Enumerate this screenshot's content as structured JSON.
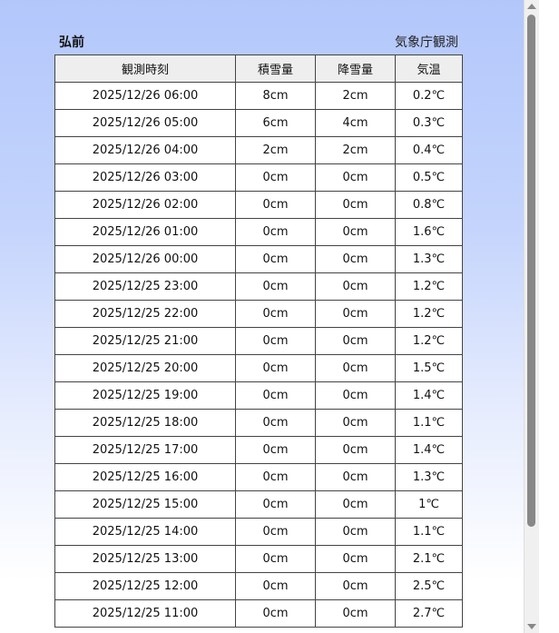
{
  "header": {
    "title": "弘前",
    "source": "気象庁観測"
  },
  "table": {
    "columns": [
      "観測時刻",
      "積雪量",
      "降雪量",
      "気温"
    ],
    "rows": [
      [
        "2025/12/26 06:00",
        "8cm",
        "2cm",
        "0.2℃"
      ],
      [
        "2025/12/26 05:00",
        "6cm",
        "4cm",
        "0.3℃"
      ],
      [
        "2025/12/26 04:00",
        "2cm",
        "2cm",
        "0.4℃"
      ],
      [
        "2025/12/26 03:00",
        "0cm",
        "0cm",
        "0.5℃"
      ],
      [
        "2025/12/26 02:00",
        "0cm",
        "0cm",
        "0.8℃"
      ],
      [
        "2025/12/26 01:00",
        "0cm",
        "0cm",
        "1.6℃"
      ],
      [
        "2025/12/26 00:00",
        "0cm",
        "0cm",
        "1.3℃"
      ],
      [
        "2025/12/25 23:00",
        "0cm",
        "0cm",
        "1.2℃"
      ],
      [
        "2025/12/25 22:00",
        "0cm",
        "0cm",
        "1.2℃"
      ],
      [
        "2025/12/25 21:00",
        "0cm",
        "0cm",
        "1.2℃"
      ],
      [
        "2025/12/25 20:00",
        "0cm",
        "0cm",
        "1.5℃"
      ],
      [
        "2025/12/25 19:00",
        "0cm",
        "0cm",
        "1.4℃"
      ],
      [
        "2025/12/25 18:00",
        "0cm",
        "0cm",
        "1.1℃"
      ],
      [
        "2025/12/25 17:00",
        "0cm",
        "0cm",
        "1.4℃"
      ],
      [
        "2025/12/25 16:00",
        "0cm",
        "0cm",
        "1.3℃"
      ],
      [
        "2025/12/25 15:00",
        "0cm",
        "0cm",
        "1℃"
      ],
      [
        "2025/12/25 14:00",
        "0cm",
        "0cm",
        "1.1℃"
      ],
      [
        "2025/12/25 13:00",
        "0cm",
        "0cm",
        "2.1℃"
      ],
      [
        "2025/12/25 12:00",
        "0cm",
        "0cm",
        "2.5℃"
      ],
      [
        "2025/12/25 11:00",
        "0cm",
        "0cm",
        "2.7℃"
      ]
    ]
  }
}
